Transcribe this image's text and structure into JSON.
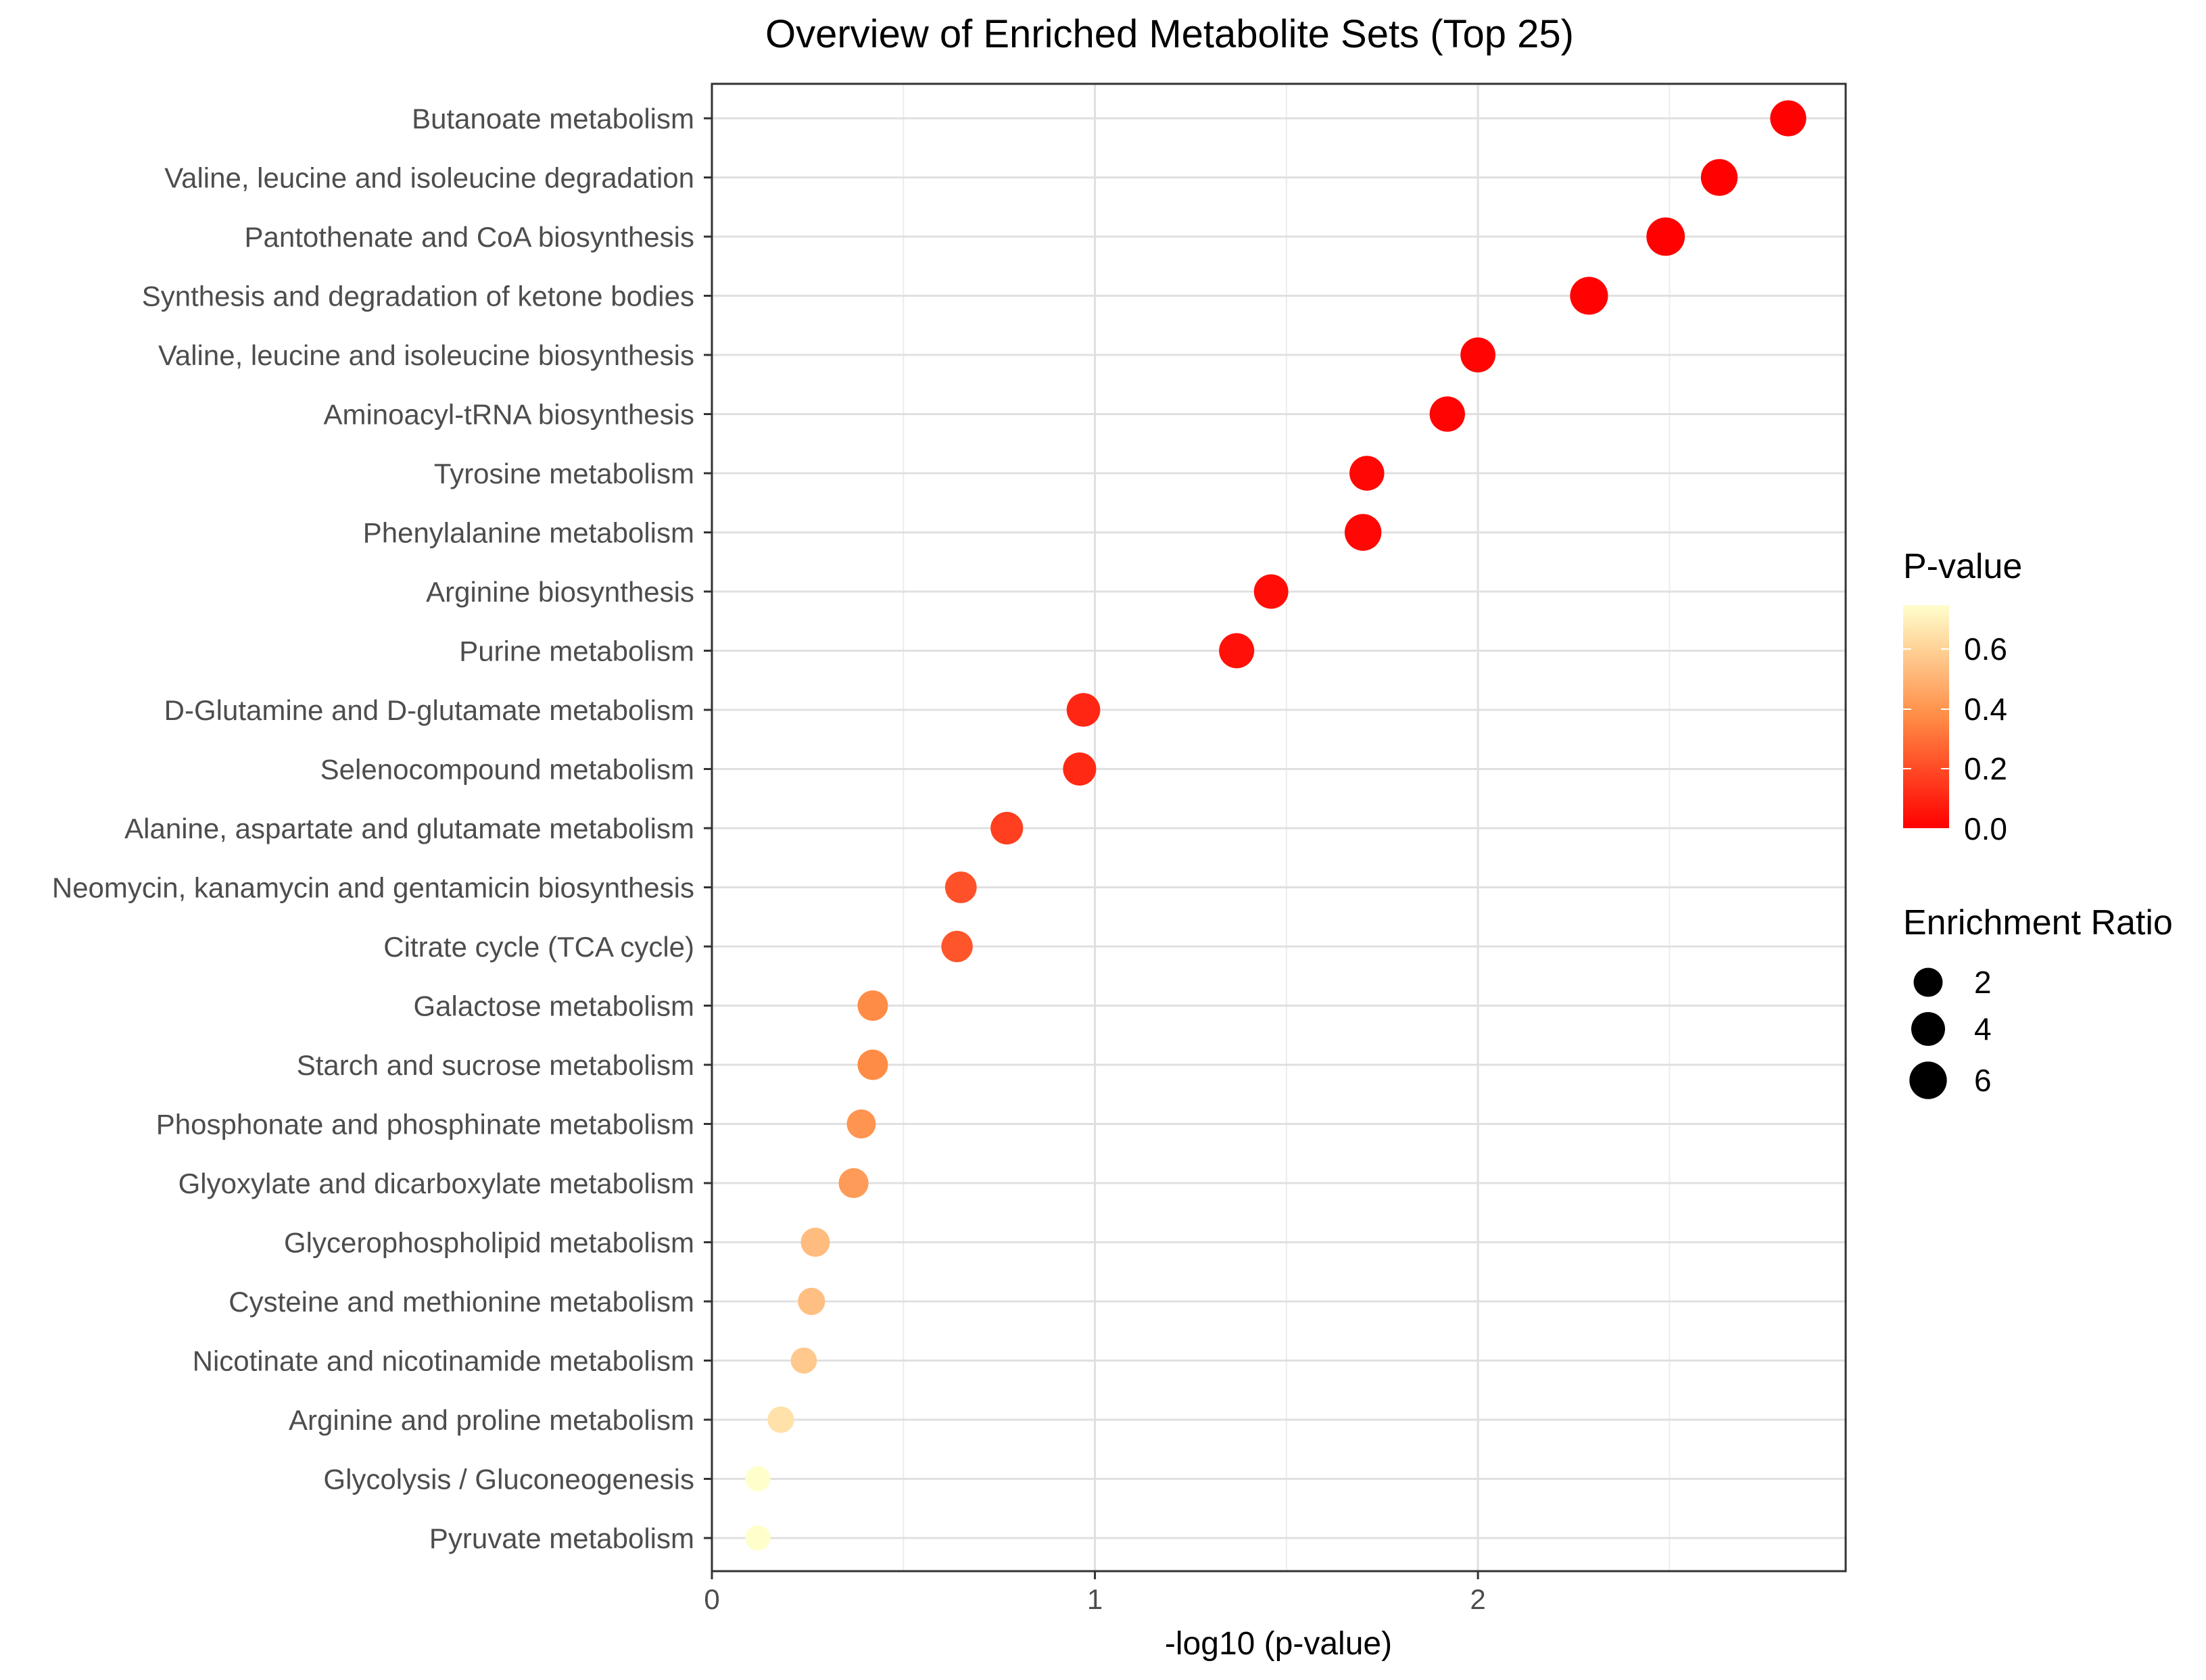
{
  "chart_data": {
    "type": "scatter",
    "title": "Overview of Enriched Metabolite Sets (Top 25)",
    "xlabel": "-log10 (p-value)",
    "ylabel": "",
    "xlim": [
      0,
      2.96
    ],
    "xticks": [
      0,
      1,
      2
    ],
    "grid": true,
    "categories": [
      "Butanoate metabolism",
      "Valine, leucine and isoleucine degradation",
      "Pantothenate and CoA biosynthesis",
      "Synthesis and degradation of ketone bodies",
      "Valine, leucine and isoleucine biosynthesis",
      "Aminoacyl-tRNA biosynthesis",
      "Tyrosine metabolism",
      "Phenylalanine metabolism",
      "Arginine biosynthesis",
      "Purine metabolism",
      "D-Glutamine and D-glutamate metabolism",
      "Selenocompound metabolism",
      "Alanine, aspartate and glutamate metabolism",
      "Neomycin, kanamycin and gentamicin biosynthesis",
      "Citrate cycle (TCA cycle)",
      "Galactose metabolism",
      "Starch and sucrose metabolism",
      "Phosphonate and phosphinate metabolism",
      "Glyoxylate and dicarboxylate metabolism",
      "Glycerophospholipid metabolism",
      "Cysteine and methionine metabolism",
      "Nicotinate and nicotinamide metabolism",
      "Arginine and proline metabolism",
      "Glycolysis / Gluconeogenesis",
      "Pyruvate metabolism"
    ],
    "x": [
      2.81,
      2.63,
      2.49,
      2.29,
      2.0,
      1.92,
      1.71,
      1.7,
      1.46,
      1.37,
      0.97,
      0.96,
      0.77,
      0.65,
      0.64,
      0.42,
      0.42,
      0.39,
      0.37,
      0.27,
      0.26,
      0.24,
      0.18,
      0.12,
      0.12
    ],
    "p_value": [
      0.0015,
      0.0023,
      0.0032,
      0.0051,
      0.01,
      0.012,
      0.0195,
      0.02,
      0.035,
      0.043,
      0.107,
      0.11,
      0.17,
      0.22,
      0.23,
      0.38,
      0.38,
      0.41,
      0.43,
      0.54,
      0.55,
      0.58,
      0.66,
      0.76,
      0.76
    ],
    "enrichment_ratio": [
      5.2,
      5.6,
      6.6,
      6.3,
      4.6,
      4.8,
      4.5,
      5.6,
      4.3,
      4.7,
      3.9,
      3.7,
      3.4,
      3.0,
      2.9,
      2.5,
      2.5,
      2.0,
      2.3,
      2.0,
      1.4,
      1.1,
      1.2,
      0.9,
      0.9
    ],
    "color_legend": {
      "title": "P-value",
      "ticks": [
        "0.6",
        "0.4",
        "0.2",
        "0.0"
      ],
      "range": [
        0,
        0.76
      ],
      "low_color": "#ff0000",
      "mid_color": "#ff8c46",
      "high_color": "#ffffcc"
    },
    "size_legend": {
      "title": "Enrichment Ratio",
      "values": [
        2,
        4,
        6
      ],
      "labels": [
        "2",
        "4",
        "6"
      ]
    }
  }
}
